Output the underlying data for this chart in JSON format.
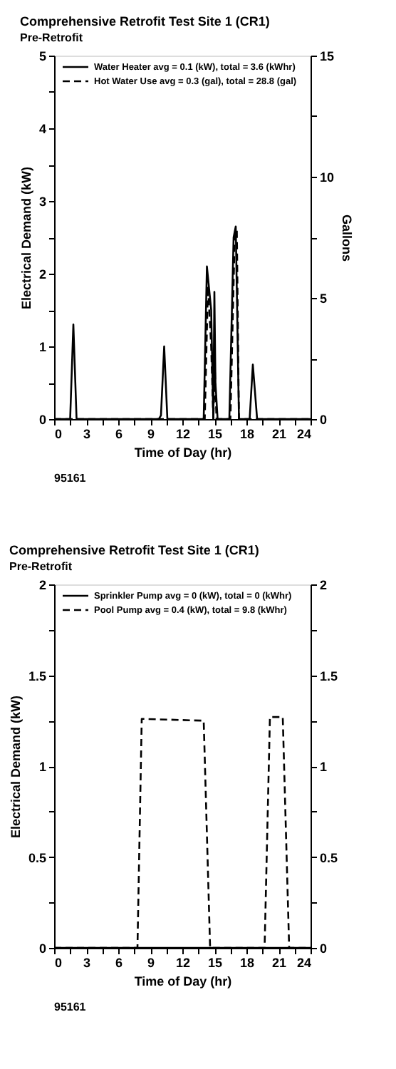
{
  "chart_data": [
    {
      "type": "line",
      "title": "Comprehensive Retrofit Test Site 1 (CR1)",
      "subtitle": "Pre-Retrofit",
      "xlabel": "Time of Day (hr)",
      "ylabel": "Electrical Demand (kW)",
      "y2label": "Gallons",
      "annotations": [
        "95161"
      ],
      "xlim": [
        0,
        24
      ],
      "xticks": [
        0,
        {
          "value": 1.5,
          "label": null
        },
        3,
        {
          "value": 4.5,
          "label": null
        },
        6,
        {
          "value": 7.5,
          "label": null
        },
        9,
        {
          "value": 10.5,
          "label": null
        },
        12,
        {
          "value": 13.5,
          "label": null
        },
        15,
        {
          "value": 16.5,
          "label": null
        },
        18,
        {
          "value": 19.5,
          "label": null
        },
        21,
        {
          "value": 22.5,
          "label": null
        },
        24
      ],
      "ylim": [
        0,
        5
      ],
      "yticks": [
        0,
        {
          "value": 0.5,
          "label": null
        },
        1,
        {
          "value": 1.5,
          "label": null
        },
        2,
        {
          "value": 2.5,
          "label": null
        },
        3,
        {
          "value": 3.5,
          "label": null
        },
        4,
        {
          "value": 4.5,
          "label": null
        },
        5
      ],
      "y2lim": [
        0,
        15
      ],
      "y2ticks": [
        0,
        {
          "value": 2.5,
          "label": null
        },
        5,
        {
          "value": 7.5,
          "label": null
        },
        10,
        {
          "value": 12.5,
          "label": null
        },
        15
      ],
      "grid": false,
      "legend": "top left",
      "marker": "none",
      "series": [
        {
          "name": "Water Heater    avg = 0.1 (kW), total = 3.6 (kWhr)",
          "color": "#000000",
          "line_style": "solid",
          "x": [
            0,
            1.5,
            1.8,
            2.1,
            9.8,
            10.0,
            10.3,
            10.6,
            14.0,
            14.3,
            14.7,
            14.9,
            15.0,
            15.1,
            15.3,
            16.4,
            16.8,
            17.0,
            17.3,
            18.3,
            18.6,
            19.0,
            24
          ],
          "values": [
            0,
            0,
            1.3,
            0,
            0,
            0.05,
            1.0,
            0,
            0,
            2.1,
            1.5,
            0,
            1.75,
            0.5,
            0,
            0,
            2.5,
            2.65,
            0,
            0,
            0.75,
            0,
            0
          ]
        },
        {
          "name": "Hot Water Use    avg = 0.3 (gal), total = 28.8 (gal)",
          "color": "#000000",
          "line_style": "dashed",
          "axis": "y2",
          "x": [
            0,
            14.1,
            14.4,
            14.7,
            14.9,
            15.05,
            15.2,
            16.5,
            16.9,
            17.1,
            17.3,
            24
          ],
          "values": [
            0,
            0,
            5.5,
            3,
            0,
            2,
            0,
            0,
            7.5,
            7.8,
            0,
            0
          ]
        }
      ]
    },
    {
      "type": "line",
      "title": "Comprehensive Retrofit Test Site 1 (CR1)",
      "subtitle": "Pre-Retrofit",
      "xlabel": "Time of Day (hr)",
      "ylabel": "Electrical Demand (kW)",
      "annotations": [
        "95161"
      ],
      "xlim": [
        0,
        24
      ],
      "xticks": [
        0,
        {
          "value": 1.5,
          "label": null
        },
        3,
        {
          "value": 4.5,
          "label": null
        },
        6,
        {
          "value": 7.5,
          "label": null
        },
        9,
        {
          "value": 10.5,
          "label": null
        },
        12,
        {
          "value": 13.5,
          "label": null
        },
        15,
        {
          "value": 16.5,
          "label": null
        },
        18,
        {
          "value": 19.5,
          "label": null
        },
        21,
        {
          "value": 22.5,
          "label": null
        },
        24
      ],
      "ylim": [
        0,
        2
      ],
      "yticks": [
        0,
        {
          "value": 0.25,
          "label": null
        },
        0.5,
        {
          "value": 0.75,
          "label": null
        },
        1,
        {
          "value": 1.25,
          "label": null
        },
        1.5,
        {
          "value": 1.75,
          "label": null
        },
        2
      ],
      "y2lim": [
        0,
        2
      ],
      "y2ticks": [
        0,
        {
          "value": 0.25,
          "label": null
        },
        0.5,
        {
          "value": 0.75,
          "label": null
        },
        1,
        {
          "value": 1.25,
          "label": null
        },
        1.5,
        {
          "value": 1.75,
          "label": null
        },
        2
      ],
      "grid": false,
      "legend": "top left",
      "marker": "none",
      "series": [
        {
          "name": "Sprinkler Pump    avg = 0 (kW), total = 0 (kWhr)",
          "color": "#000000",
          "line_style": "solid",
          "x": [
            0,
            24
          ],
          "values": [
            0,
            0
          ]
        },
        {
          "name": "Pool Pump    avg = 0.4 (kW), total = 9.8 (kWhr)",
          "color": "#000000",
          "line_style": "dashed",
          "x": [
            0,
            7.8,
            8.2,
            14.0,
            14.6,
            19.7,
            20.2,
            21.4,
            22.0,
            24
          ],
          "values": [
            0,
            0,
            1.26,
            1.25,
            0,
            0,
            1.27,
            1.27,
            0,
            0
          ]
        }
      ]
    }
  ]
}
